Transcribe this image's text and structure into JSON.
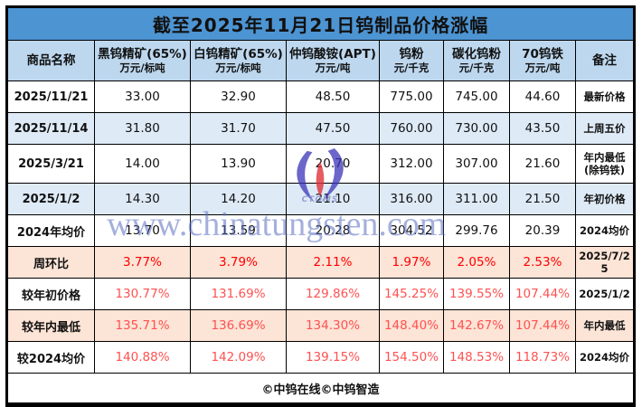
{
  "chart_data": {
    "type": "table",
    "title": "截至2025年11月21日钨制品价格涨幅",
    "columns": [
      {
        "label": "商品名称",
        "unit": ""
      },
      {
        "label": "黑钨精矿(65%)",
        "unit": "万元/标吨"
      },
      {
        "label": "白钨精矿(65%)",
        "unit": "万元/标吨"
      },
      {
        "label": "仲钨酸铵(APT)",
        "unit": "万元/吨"
      },
      {
        "label": "钨粉",
        "unit": "元/千克"
      },
      {
        "label": "碳化钨粉",
        "unit": "元/千克"
      },
      {
        "label": "70钨铁",
        "unit": "万元/吨"
      },
      {
        "label": "备注",
        "unit": ""
      }
    ],
    "rows": [
      {
        "label": "2025/11/21",
        "values": [
          "33.00",
          "32.90",
          "48.50",
          "775.00",
          "745.00",
          "44.60"
        ],
        "remark": "最新价格",
        "bg": "white",
        "value_color": "#111111",
        "tall": false
      },
      {
        "label": "2025/11/14",
        "values": [
          "31.80",
          "31.70",
          "47.50",
          "760.00",
          "730.00",
          "43.50"
        ],
        "remark": "上周五价",
        "bg": "blue",
        "value_color": "#111111",
        "tall": false
      },
      {
        "label": "2025/3/21",
        "values": [
          "14.00",
          "13.90",
          "20.70",
          "312.00",
          "307.00",
          "21.60"
        ],
        "remark": "年内最低(除钨铁)",
        "bg": "white",
        "value_color": "#111111",
        "tall": true
      },
      {
        "label": "2025/1/2",
        "values": [
          "14.30",
          "14.20",
          "21.10",
          "316.00",
          "311.00",
          "21.50"
        ],
        "remark": "年初价格",
        "bg": "blue",
        "value_color": "#111111",
        "tall": false
      },
      {
        "label": "2024年均价",
        "values": [
          "13.70",
          "13.59",
          "20.28",
          "304.52",
          "299.76",
          "20.39"
        ],
        "remark": "2024均价",
        "bg": "white",
        "value_color": "#111111",
        "tall": false
      },
      {
        "label": "周环比",
        "values": [
          "3.77%",
          "3.79%",
          "2.11%",
          "1.97%",
          "2.05%",
          "2.53%"
        ],
        "remark": "2025/7/25",
        "bg": "pink",
        "value_color": "#FF0000",
        "tall": false
      },
      {
        "label": "较年初价格",
        "values": [
          "130.77%",
          "131.69%",
          "129.86%",
          "145.25%",
          "139.55%",
          "107.44%"
        ],
        "remark": "2025/1/2",
        "bg": "white",
        "value_color": "#FF5151",
        "tall": false
      },
      {
        "label": "较年内最低",
        "values": [
          "135.71%",
          "136.69%",
          "134.30%",
          "148.40%",
          "142.67%",
          "107.44%"
        ],
        "remark": "年内最低",
        "bg": "pink",
        "value_color": "#FF5151",
        "tall": false
      },
      {
        "label": "较2024均价",
        "values": [
          "140.88%",
          "142.09%",
          "139.15%",
          "154.50%",
          "148.53%",
          "118.73%"
        ],
        "remark": "2024均价",
        "bg": "white",
        "value_color": "#FF5151",
        "tall": false
      }
    ]
  },
  "watermark": {
    "text": "www.chinatungsten.com",
    "logo_subtext": "CTOMS"
  },
  "footer": {
    "credit": "©中钨在线©中钨智造"
  },
  "colors": {
    "title_bg": "#4D94D2",
    "header_bg": "#BDD7EE",
    "row_white": "#FFFFFF",
    "row_blue": "#DEEAF6",
    "row_pink": "#FCE4D6",
    "red_strong": "#FF0000",
    "red_soft": "#FF5151",
    "watermark_blue": "#5A6FC0"
  }
}
